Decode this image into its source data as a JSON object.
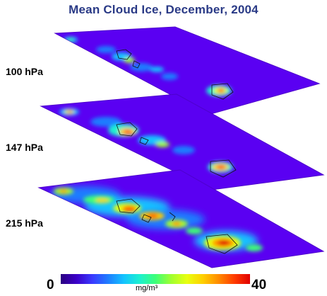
{
  "title": "Mean Cloud Ice, December, 2004",
  "layers": [
    {
      "label": "100 hPa"
    },
    {
      "label": "147 hPa"
    },
    {
      "label": "215 hPa"
    }
  ],
  "colorbar": {
    "min": "0",
    "max": "40",
    "unit": "mg/m³",
    "colors": [
      "#2a0080",
      "#3b00c8",
      "#3a3aff",
      "#1f7dff",
      "#13c3ff",
      "#1cf0d0",
      "#3cff78",
      "#a0ff30",
      "#e8ff10",
      "#ffd000",
      "#ff8c00",
      "#ff3c00",
      "#e00000"
    ]
  },
  "palette": {
    "background": "#5a00f2",
    "edge_shade": "#4e00cc",
    "coastline": "#111111"
  }
}
